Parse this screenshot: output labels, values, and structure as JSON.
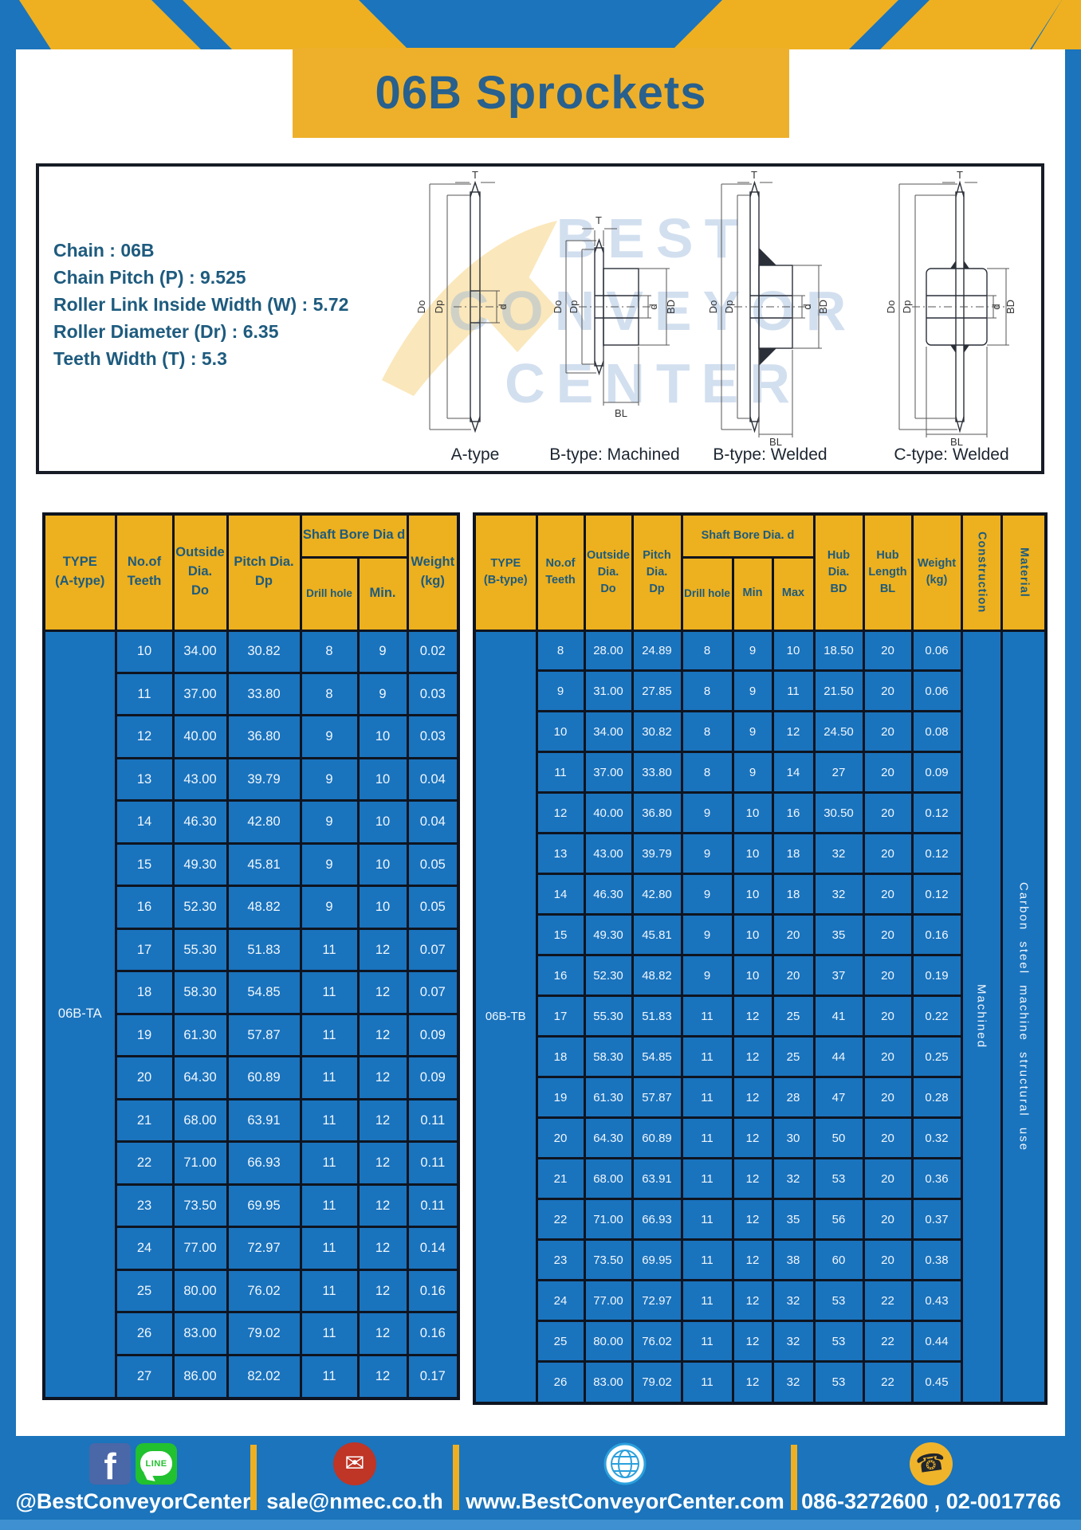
{
  "title": "06B Sprockets",
  "specs": {
    "separator": " : ",
    "lines": [
      {
        "label": "Chain",
        "value": "06B"
      },
      {
        "label": "Chain Pitch (P)",
        "value": "9.525"
      },
      {
        "label": "Roller Link Inside Width (W)",
        "value": "5.72"
      },
      {
        "label": "Roller Diameter (Dr)",
        "value": "6.35"
      },
      {
        "label": "Teeth Width (T)",
        "value": "5.3"
      }
    ]
  },
  "diagram": {
    "watermark": {
      "line1": "BEST",
      "line2": "CONVEYOR",
      "line3": "CENTER"
    },
    "captions": {
      "a": "A-type",
      "b_machined": "B-type: Machined",
      "b_welded": "B-type: Welded",
      "c_welded": "C-type: Welded"
    },
    "dims": {
      "T": "T",
      "Do": "Do",
      "Dp": "Dp",
      "d": "d",
      "BD": "BD",
      "BL": "BL"
    }
  },
  "left_table": {
    "headers": {
      "type": "TYPE\n(A-type)",
      "teeth": "No.of\nTeeth",
      "outside": "Outside\nDia.\nDo",
      "pitch": "Pitch Dia.\nDp",
      "shaft": "Shaft Bore Dia d",
      "drill": "Drill hole",
      "min": "Min.",
      "weight": "Weight\n(kg)"
    },
    "type_value": "06B-TA",
    "rows": [
      [
        "10",
        "34.00",
        "30.82",
        "8",
        "9",
        "0.02"
      ],
      [
        "11",
        "37.00",
        "33.80",
        "8",
        "9",
        "0.03"
      ],
      [
        "12",
        "40.00",
        "36.80",
        "9",
        "10",
        "0.03"
      ],
      [
        "13",
        "43.00",
        "39.79",
        "9",
        "10",
        "0.04"
      ],
      [
        "14",
        "46.30",
        "42.80",
        "9",
        "10",
        "0.04"
      ],
      [
        "15",
        "49.30",
        "45.81",
        "9",
        "10",
        "0.05"
      ],
      [
        "16",
        "52.30",
        "48.82",
        "9",
        "10",
        "0.05"
      ],
      [
        "17",
        "55.30",
        "51.83",
        "11",
        "12",
        "0.07"
      ],
      [
        "18",
        "58.30",
        "54.85",
        "11",
        "12",
        "0.07"
      ],
      [
        "19",
        "61.30",
        "57.87",
        "11",
        "12",
        "0.09"
      ],
      [
        "20",
        "64.30",
        "60.89",
        "11",
        "12",
        "0.09"
      ],
      [
        "21",
        "68.00",
        "63.91",
        "11",
        "12",
        "0.11"
      ],
      [
        "22",
        "71.00",
        "66.93",
        "11",
        "12",
        "0.11"
      ],
      [
        "23",
        "73.50",
        "69.95",
        "11",
        "12",
        "0.11"
      ],
      [
        "24",
        "77.00",
        "72.97",
        "11",
        "12",
        "0.14"
      ],
      [
        "25",
        "80.00",
        "76.02",
        "11",
        "12",
        "0.16"
      ],
      [
        "26",
        "83.00",
        "79.02",
        "11",
        "12",
        "0.16"
      ],
      [
        "27",
        "86.00",
        "82.02",
        "11",
        "12",
        "0.17"
      ]
    ]
  },
  "right_table": {
    "headers": {
      "type": "TYPE\n(B-type)",
      "teeth": "No.of\nTeeth",
      "outside": "Outside\nDia.\nDo",
      "pitch": "Pitch\nDia.\nDp",
      "shaft": "Shaft Bore Dia. d",
      "drill": "Drill hole",
      "min": "Min",
      "max": "Max",
      "hub_dia": "Hub\nDia.\nBD",
      "hub_len": "Hub\nLength\nBL",
      "weight": "Weight\n(kg)",
      "construction": "Construction",
      "material": "Material"
    },
    "type_value": "06B-TB",
    "construction_value": "Machined",
    "material_value": "Carbon steel machine structural use",
    "rows": [
      [
        "8",
        "28.00",
        "24.89",
        "8",
        "9",
        "10",
        "18.50",
        "20",
        "0.06"
      ],
      [
        "9",
        "31.00",
        "27.85",
        "8",
        "9",
        "11",
        "21.50",
        "20",
        "0.06"
      ],
      [
        "10",
        "34.00",
        "30.82",
        "8",
        "9",
        "12",
        "24.50",
        "20",
        "0.08"
      ],
      [
        "11",
        "37.00",
        "33.80",
        "8",
        "9",
        "14",
        "27",
        "20",
        "0.09"
      ],
      [
        "12",
        "40.00",
        "36.80",
        "9",
        "10",
        "16",
        "30.50",
        "20",
        "0.12"
      ],
      [
        "13",
        "43.00",
        "39.79",
        "9",
        "10",
        "18",
        "32",
        "20",
        "0.12"
      ],
      [
        "14",
        "46.30",
        "42.80",
        "9",
        "10",
        "18",
        "32",
        "20",
        "0.12"
      ],
      [
        "15",
        "49.30",
        "45.81",
        "9",
        "10",
        "20",
        "35",
        "20",
        "0.16"
      ],
      [
        "16",
        "52.30",
        "48.82",
        "9",
        "10",
        "20",
        "37",
        "20",
        "0.19"
      ],
      [
        "17",
        "55.30",
        "51.83",
        "11",
        "12",
        "25",
        "41",
        "20",
        "0.22"
      ],
      [
        "18",
        "58.30",
        "54.85",
        "11",
        "12",
        "25",
        "44",
        "20",
        "0.25"
      ],
      [
        "19",
        "61.30",
        "57.87",
        "11",
        "12",
        "28",
        "47",
        "20",
        "0.28"
      ],
      [
        "20",
        "64.30",
        "60.89",
        "11",
        "12",
        "30",
        "50",
        "20",
        "0.32"
      ],
      [
        "21",
        "68.00",
        "63.91",
        "11",
        "12",
        "32",
        "53",
        "20",
        "0.36"
      ],
      [
        "22",
        "71.00",
        "66.93",
        "11",
        "12",
        "35",
        "56",
        "20",
        "0.37"
      ],
      [
        "23",
        "73.50",
        "69.95",
        "11",
        "12",
        "38",
        "60",
        "20",
        "0.38"
      ],
      [
        "24",
        "77.00",
        "72.97",
        "11",
        "12",
        "32",
        "53",
        "22",
        "0.43"
      ],
      [
        "25",
        "80.00",
        "76.02",
        "11",
        "12",
        "32",
        "53",
        "22",
        "0.44"
      ],
      [
        "26",
        "83.00",
        "79.02",
        "11",
        "12",
        "32",
        "53",
        "22",
        "0.45"
      ]
    ]
  },
  "footer": {
    "fb_letter": "f",
    "line_badge": "LINE",
    "email_glyph": "✉",
    "phone_glyph": "☎",
    "social_label": "@BestConveyorCenter",
    "email_label": "sale@nmec.co.th",
    "website_label": "www.BestConveyorCenter.com",
    "phone_label": "086-3272600 , 02-0017766"
  },
  "colors": {
    "blue": "#1b74bc",
    "yellow": "#eeb01e",
    "cell_blue": "#1a73bd",
    "border_dark": "#0e1420",
    "teal_text": "#1e5b7e"
  }
}
